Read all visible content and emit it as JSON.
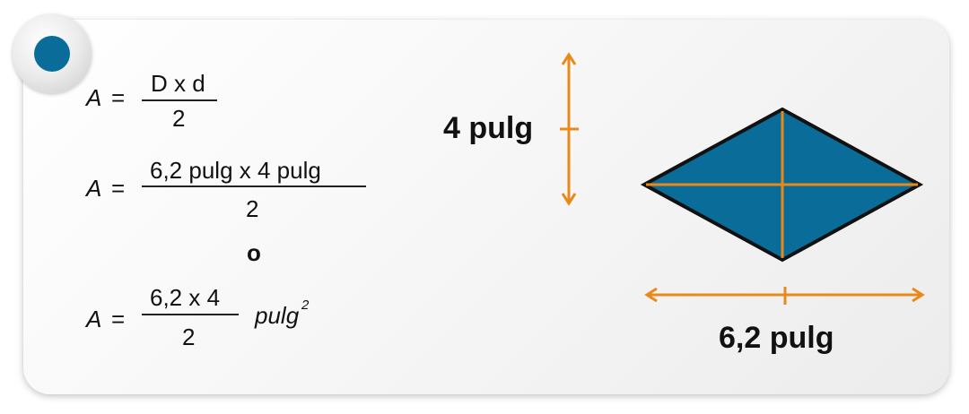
{
  "formulas": {
    "area_symbol": "A",
    "equals": "=",
    "f1_numerator": "D x d",
    "f1_denominator": "2",
    "f2_numerator": "6,2 pulg x 4 pulg",
    "f2_denominator": "2",
    "connector": "o",
    "f3_numerator": "6,2 x 4",
    "f3_denominator": "2",
    "f3_unit": "pulg",
    "f3_exponent": "2"
  },
  "diagram": {
    "vertical_label": "4 pulg",
    "horizontal_label": "6,2 pulg",
    "colors": {
      "rhombus_fill": "#0a6c99",
      "rhombus_stroke": "#111111",
      "diagonals": "#e8891a",
      "arrows": "#e8891a"
    }
  }
}
